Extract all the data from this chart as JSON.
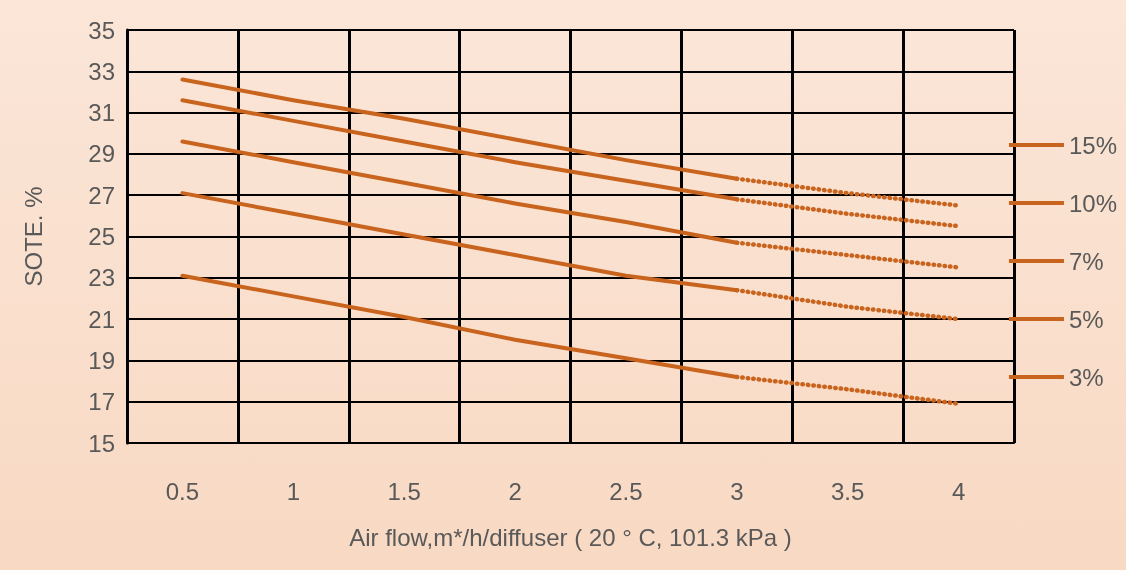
{
  "chart_data": {
    "type": "line",
    "xlabel": "Air flow,m*/h/diffuser ( 20 ° C, 101.3 kPa )",
    "ylabel": "SOTE. %",
    "categories": [
      "0.5",
      "1",
      "1.5",
      "2",
      "2.5",
      "3",
      "3.5",
      "4"
    ],
    "ylim": [
      15,
      35
    ],
    "yticks": [
      15,
      17,
      19,
      21,
      23,
      25,
      27,
      29,
      31,
      33,
      35
    ],
    "grid": true,
    "legend": "right",
    "marker": "none",
    "series": [
      {
        "name": "15%",
        "color": "#c8641e",
        "line_style": "solid",
        "values": [
          32.6,
          31.6,
          30.7,
          29.7,
          28.7,
          27.8,
          null,
          null
        ]
      },
      {
        "name": "10%",
        "color": "#c8641e",
        "line_style": "solid",
        "values": [
          31.6,
          30.6,
          29.6,
          28.6,
          27.7,
          26.8,
          null,
          null
        ]
      },
      {
        "name": "7%",
        "color": "#c8641e",
        "line_style": "solid",
        "values": [
          29.6,
          28.6,
          27.6,
          26.6,
          25.7,
          24.7,
          null,
          null
        ]
      },
      {
        "name": "5%",
        "color": "#c8641e",
        "line_style": "solid",
        "values": [
          27.1,
          26.1,
          25.1,
          24.1,
          23.1,
          22.4,
          null,
          null
        ]
      },
      {
        "name": "3%",
        "color": "#c8641e",
        "line_style": "solid",
        "values": [
          23.1,
          22.1,
          21.1,
          20.0,
          19.1,
          18.2,
          null,
          null
        ]
      },
      {
        "color": "#c8641e",
        "line_style": "dotted",
        "values": [
          null,
          null,
          null,
          null,
          null,
          27.8,
          27.1,
          26.5
        ]
      },
      {
        "color": "#c8641e",
        "line_style": "dotted",
        "values": [
          null,
          null,
          null,
          null,
          null,
          26.8,
          26.1,
          25.5
        ]
      },
      {
        "color": "#c8641e",
        "line_style": "dotted",
        "values": [
          null,
          null,
          null,
          null,
          null,
          24.7,
          24.1,
          23.5
        ]
      },
      {
        "color": "#c8641e",
        "line_style": "dotted",
        "values": [
          null,
          null,
          null,
          null,
          null,
          22.4,
          21.6,
          21.0
        ]
      },
      {
        "color": "#c8641e",
        "line_style": "dotted",
        "values": [
          null,
          null,
          null,
          null,
          null,
          18.2,
          17.6,
          16.9
        ]
      }
    ]
  }
}
